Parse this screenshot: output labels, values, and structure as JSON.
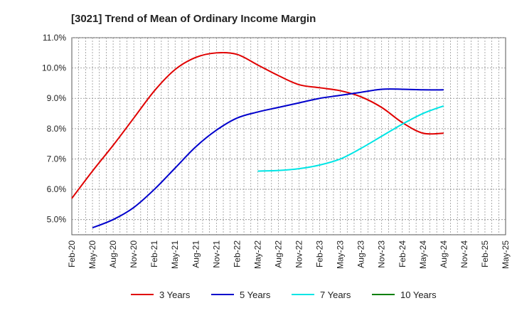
{
  "chart_data": {
    "type": "line",
    "title": "[3021]  Trend of Mean of Ordinary Income Margin",
    "xlabel": "",
    "ylabel": "",
    "ylim": [
      4.5,
      11.0
    ],
    "yticks": [
      5.0,
      6.0,
      7.0,
      8.0,
      9.0,
      10.0,
      11.0
    ],
    "ytick_labels": [
      "5.0%",
      "6.0%",
      "7.0%",
      "8.0%",
      "9.0%",
      "10.0%",
      "11.0%"
    ],
    "x_categories": [
      "Feb-20",
      "May-20",
      "Aug-20",
      "Nov-20",
      "Feb-21",
      "May-21",
      "Aug-21",
      "Nov-21",
      "Feb-22",
      "May-22",
      "Aug-22",
      "Nov-22",
      "Feb-23",
      "May-23",
      "Aug-23",
      "Nov-23",
      "Feb-24",
      "May-24",
      "Aug-24",
      "Nov-24",
      "Feb-25",
      "May-25"
    ],
    "grid": true,
    "legend_position": "bottom",
    "series": [
      {
        "name": "3 Years",
        "color": "#e00000",
        "values": [
          5.7,
          6.6,
          7.45,
          8.35,
          9.25,
          9.95,
          10.35,
          10.5,
          10.45,
          10.1,
          9.75,
          9.45,
          9.35,
          9.25,
          9.05,
          8.7,
          8.2,
          7.85,
          7.85,
          null,
          null,
          null
        ]
      },
      {
        "name": "5 Years",
        "color": "#0000cc",
        "values": [
          null,
          4.73,
          5.0,
          5.4,
          6.0,
          6.7,
          7.4,
          7.95,
          8.35,
          8.55,
          8.7,
          8.85,
          9.0,
          9.1,
          9.2,
          9.3,
          9.3,
          9.28,
          9.28,
          null,
          null,
          null
        ]
      },
      {
        "name": "7 Years",
        "color": "#00e5e5",
        "values": [
          null,
          null,
          null,
          null,
          null,
          null,
          null,
          null,
          null,
          6.6,
          6.62,
          6.68,
          6.8,
          7.0,
          7.35,
          7.75,
          8.15,
          8.5,
          8.75,
          null,
          null,
          null
        ]
      },
      {
        "name": "10 Years",
        "color": "#008000",
        "values": [
          null,
          null,
          null,
          null,
          null,
          null,
          null,
          null,
          null,
          null,
          null,
          null,
          null,
          null,
          null,
          null,
          null,
          null,
          null,
          null,
          null,
          null
        ]
      }
    ]
  }
}
